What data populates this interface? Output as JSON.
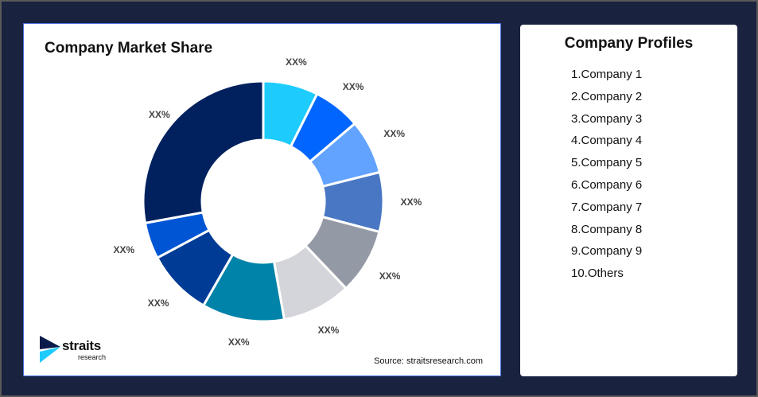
{
  "chart_data": {
    "type": "pie",
    "title": "Company Market Share",
    "donut": true,
    "direction": "clockwise from top",
    "values": [
      7.4,
      6.4,
      7.3,
      8.0,
      8.8,
      9.3,
      11.1,
      8.9,
      4.9,
      27.9
    ],
    "labels": [
      "XX%",
      "XX%",
      "XX%",
      "XX%",
      "XX%",
      "XX%",
      "XX%",
      "XX%",
      "XX%",
      "XX%"
    ],
    "colors": [
      "#1ECBFD",
      "#0066FF",
      "#62A3FF",
      "#4A77C4",
      "#9499A6",
      "#D4D5DA",
      "#0083A8",
      "#003C96",
      "#0055D4",
      "#00215E"
    ]
  },
  "source": "Source: straitsresearch.com",
  "logo": {
    "name": "straits",
    "sub": "research"
  },
  "profiles": {
    "title": "Company Profiles",
    "items": [
      "1.Company 1",
      "2.Company 2",
      "3.Company 3",
      "4.Company 4",
      "5.Company 5",
      "6.Company 6",
      "7.Company 7",
      "8.Company 8",
      "9.Company 9",
      "10.Others"
    ]
  }
}
